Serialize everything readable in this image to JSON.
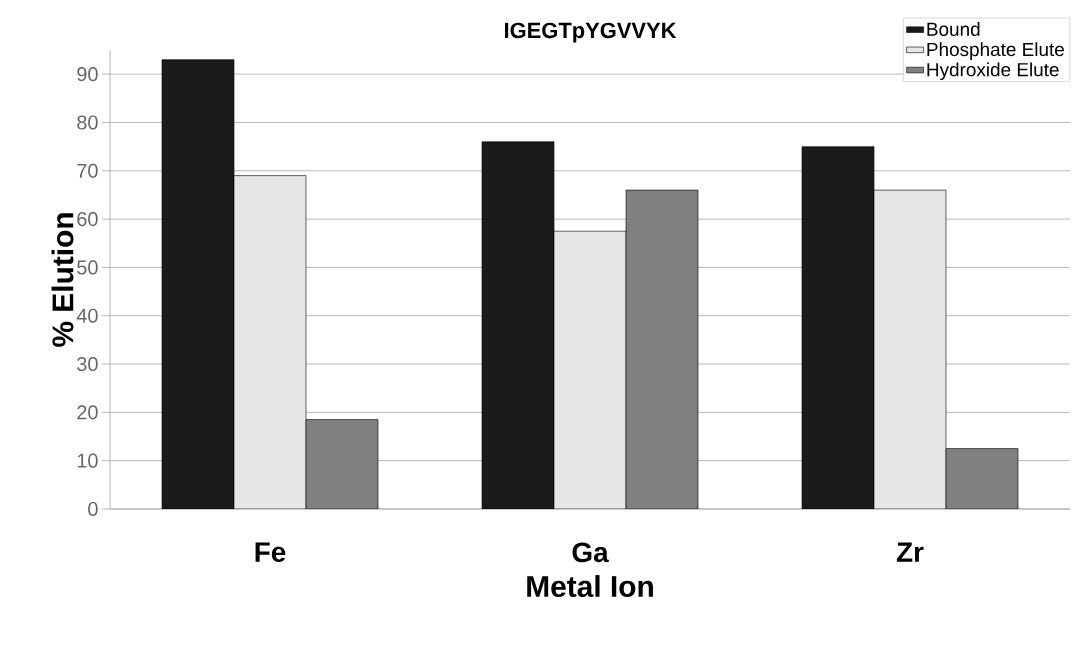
{
  "chart_data": {
    "type": "bar",
    "title": "IGEGTpYGVVYK",
    "xlabel": "Metal Ion",
    "ylabel": "% Elution",
    "categories": [
      "Fe",
      "Ga",
      "Zr"
    ],
    "series": [
      {
        "name": "Bound",
        "color": "#1a1a1a",
        "values": [
          93,
          76,
          75
        ]
      },
      {
        "name": "Phosphate Elute",
        "color": "#e6e6e6",
        "values": [
          69,
          57.5,
          66
        ]
      },
      {
        "name": "Hydroxide Elute",
        "color": "#808080",
        "values": [
          18.5,
          66,
          12.5
        ]
      }
    ],
    "ylim": [
      0,
      95
    ],
    "yticks": [
      0,
      10,
      20,
      30,
      40,
      50,
      60,
      70,
      80,
      90
    ],
    "grid": "y",
    "legend": "top right"
  }
}
